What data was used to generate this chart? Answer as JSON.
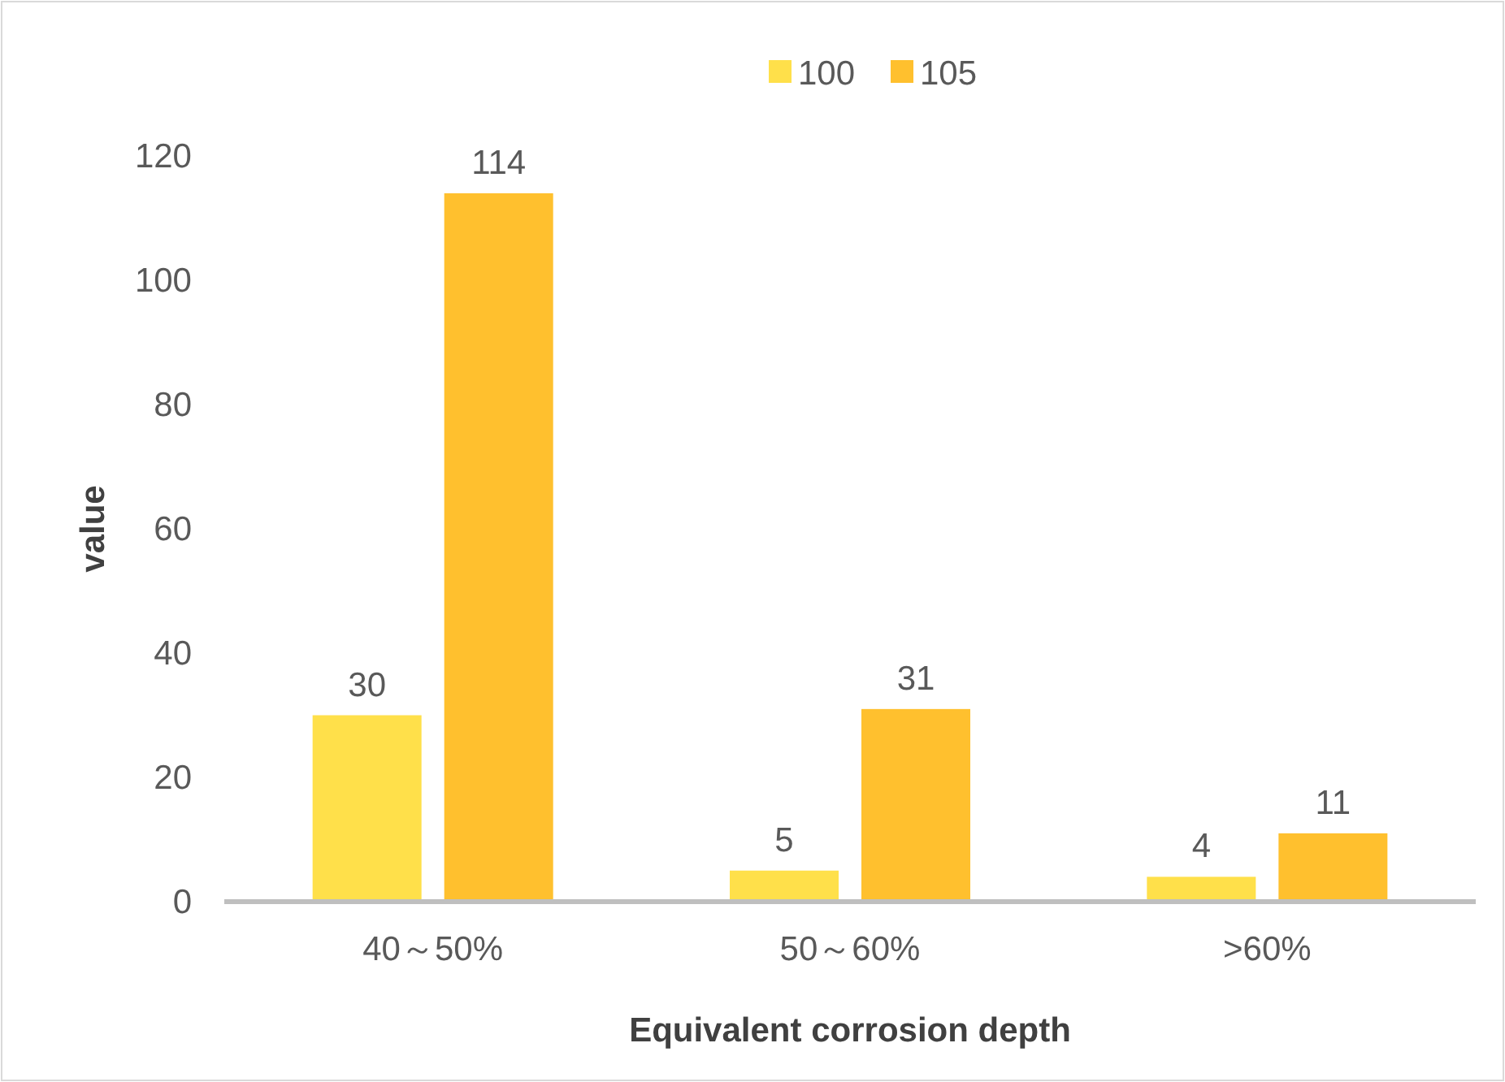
{
  "chart_data": {
    "type": "bar",
    "xlabel": "Equivalent corrosion depth",
    "ylabel": "value",
    "categories": [
      "40～50%",
      "50～60%",
      ">60%"
    ],
    "series": [
      {
        "name": "100",
        "color": "#ffe04a",
        "values": [
          30,
          5,
          4
        ]
      },
      {
        "name": "105",
        "color": "#ffc02e",
        "values": [
          114,
          31,
          11
        ]
      }
    ],
    "ylim": [
      0,
      120
    ],
    "yticks": [
      0,
      20,
      40,
      60,
      80,
      100,
      120
    ],
    "data_labels": true,
    "legend": "top",
    "grid": false
  }
}
